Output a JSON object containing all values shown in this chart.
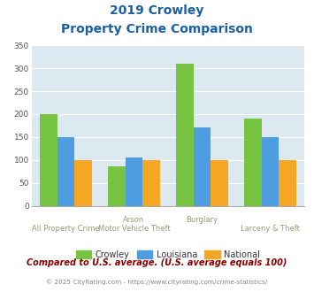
{
  "title_line1": "2019 Crowley",
  "title_line2": "Property Crime Comparison",
  "cat_labels_top": [
    "",
    "Arson",
    "Burglary",
    ""
  ],
  "cat_labels_bottom": [
    "All Property Crime",
    "Motor Vehicle Theft",
    "",
    "Larceny & Theft"
  ],
  "crowley": [
    200,
    87,
    310,
    191
  ],
  "louisiana": [
    150,
    105,
    170,
    150
  ],
  "national": [
    100,
    100,
    100,
    100
  ],
  "crowley_color": "#76c442",
  "louisiana_color": "#4d9de0",
  "national_color": "#f5a623",
  "ylim": [
    0,
    350
  ],
  "yticks": [
    0,
    50,
    100,
    150,
    200,
    250,
    300,
    350
  ],
  "bg_color": "#dce9f0",
  "grid_color": "#ffffff",
  "legend_labels": [
    "Crowley",
    "Louisiana",
    "National"
  ],
  "footer_text": "Compared to U.S. average. (U.S. average equals 100)",
  "copyright_text": "© 2025 CityRating.com - https://www.cityrating.com/crime-statistics/",
  "title_color": "#1a5fa8",
  "footer_color": "#8b0000",
  "copyright_color": "#888888",
  "xlabel_color": "#9b9b7a"
}
